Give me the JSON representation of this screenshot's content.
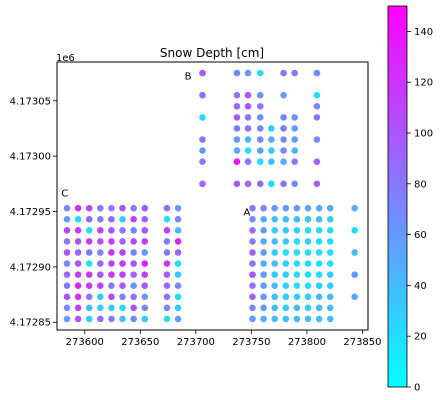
{
  "chart_data": {
    "type": "scatter",
    "title": "Snow Depth [cm]",
    "xlabel": "",
    "ylabel": "",
    "y_offset_text": "1e6",
    "xlim": [
      273575,
      273855
    ],
    "ylim": [
      4172843,
      4173085
    ],
    "x_ticks": [
      273600,
      273650,
      273700,
      273750,
      273800,
      273850
    ],
    "x_tick_labels": [
      "273600",
      "273650",
      "273700",
      "273750",
      "273800",
      "273850"
    ],
    "y_ticks": [
      4172850,
      4172900,
      4172950,
      4173000,
      4173050
    ],
    "y_tick_labels": [
      "4.17285",
      "4.17290",
      "4.17295",
      "4.17300",
      "4.17305"
    ],
    "grid": false,
    "colormap": "cool",
    "colorbar": {
      "min": 0,
      "max": 150,
      "ticks": [
        0,
        20,
        40,
        60,
        80,
        100,
        120,
        140
      ],
      "tick_labels": [
        "0",
        "20",
        "40",
        "60",
        "80",
        "100",
        "120",
        "140"
      ],
      "color_min": "#00ffff",
      "color_max": "#ff00ff"
    },
    "area_labels": [
      {
        "text": "A",
        "x": 273746,
        "y": 4172950
      },
      {
        "text": "B",
        "x": 273693,
        "y": 4173073
      },
      {
        "text": "C",
        "x": 273582,
        "y": 4172967
      }
    ],
    "series": [
      {
        "area": "C",
        "x": [
          273584,
          273594,
          273604,
          273614,
          273624,
          273634,
          273644,
          273654,
          273664,
          273674,
          273684
        ],
        "y": [
          4172953,
          4172943,
          4172933,
          4172923,
          4172913,
          4172903,
          4172893,
          4172883,
          4172873,
          4172863,
          4172853
        ],
        "values": [
          [
            70,
            120,
            110,
            80,
            80,
            100,
            75,
            100,
            null,
            90,
            60
          ],
          [
            60,
            20,
            90,
            80,
            90,
            30,
            110,
            90,
            null,
            20,
            70
          ],
          [
            110,
            115,
            20,
            110,
            100,
            80,
            70,
            100,
            null,
            110,
            40
          ],
          [
            80,
            100,
            115,
            100,
            115,
            90,
            110,
            115,
            null,
            80,
            130
          ],
          [
            100,
            90,
            80,
            70,
            120,
            110,
            70,
            60,
            null,
            80,
            90
          ],
          [
            70,
            100,
            20,
            90,
            110,
            115,
            100,
            130,
            null,
            120,
            20
          ],
          [
            90,
            110,
            115,
            100,
            115,
            110,
            90,
            115,
            null,
            100,
            30
          ],
          [
            80,
            130,
            115,
            110,
            80,
            100,
            60,
            100,
            null,
            90,
            70
          ],
          [
            100,
            120,
            80,
            30,
            110,
            70,
            80,
            60,
            null,
            80,
            20
          ],
          [
            70,
            110,
            40,
            30,
            30,
            20,
            100,
            70,
            null,
            70,
            30
          ],
          [
            60,
            100,
            30,
            90,
            80,
            40,
            70,
            30,
            null,
            20,
            60
          ]
        ]
      },
      {
        "area": "B",
        "x": [
          273706,
          273727,
          273737,
          273747,
          273758,
          273768,
          273779,
          273789,
          273809
        ],
        "y": [
          4173075,
          4173055,
          4173045,
          4173035,
          4173025,
          4173015,
          4173005,
          4172995,
          4172985,
          4172975
        ],
        "values": [
          [
            100,
            null,
            70,
            60,
            20,
            null,
            80,
            80,
            70
          ],
          [
            90,
            null,
            80,
            100,
            60,
            null,
            60,
            null,
            20
          ],
          [
            null,
            null,
            90,
            100,
            80,
            null,
            null,
            null,
            70
          ],
          [
            20,
            null,
            100,
            80,
            60,
            null,
            70,
            60,
            80
          ],
          [
            null,
            null,
            80,
            80,
            70,
            30,
            80,
            60,
            null
          ],
          [
            80,
            null,
            60,
            40,
            70,
            50,
            70,
            60,
            70
          ],
          [
            60,
            null,
            50,
            20,
            60,
            30,
            70,
            40,
            null
          ],
          [
            80,
            null,
            140,
            80,
            20,
            40,
            50,
            80,
            90
          ],
          [
            null,
            null,
            null,
            null,
            null,
            null,
            null,
            null,
            null
          ],
          [
            90,
            null,
            100,
            90,
            90,
            20,
            80,
            70,
            90
          ]
        ]
      },
      {
        "area": "A",
        "x": [
          273751,
          273761,
          273771,
          273781,
          273791,
          273801,
          273811,
          273821,
          273843
        ],
        "y": [
          4172953,
          4172943,
          4172933,
          4172923,
          4172913,
          4172903,
          4172893,
          4172883,
          4172873,
          4172863,
          4172853
        ],
        "values": [
          [
            80,
            70,
            60,
            60,
            60,
            50,
            50,
            50,
            50
          ],
          [
            70,
            50,
            40,
            40,
            40,
            30,
            40,
            30,
            null
          ],
          [
            90,
            60,
            30,
            30,
            30,
            20,
            20,
            20,
            20
          ],
          [
            80,
            50,
            40,
            30,
            20,
            30,
            20,
            20,
            null
          ],
          [
            90,
            60,
            30,
            20,
            20,
            20,
            20,
            20,
            40
          ],
          [
            80,
            50,
            40,
            30,
            20,
            20,
            20,
            20,
            null
          ],
          [
            100,
            60,
            30,
            30,
            20,
            20,
            20,
            30,
            60
          ],
          [
            80,
            60,
            40,
            30,
            20,
            20,
            30,
            30,
            null
          ],
          [
            90,
            60,
            40,
            30,
            30,
            30,
            40,
            40,
            50
          ],
          [
            70,
            60,
            40,
            30,
            40,
            30,
            40,
            40,
            null
          ],
          [
            60,
            50,
            40,
            40,
            40,
            40,
            40,
            40,
            null
          ]
        ]
      }
    ]
  }
}
